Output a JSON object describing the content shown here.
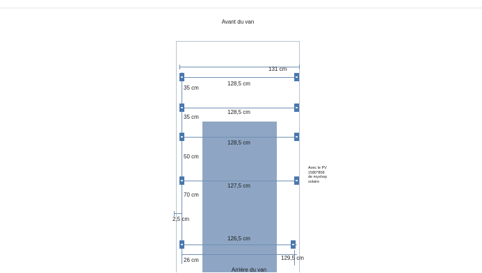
{
  "diagram": {
    "front_label": "Avant du van",
    "rear_label": "Arrière du van",
    "overall_width": "131 cm",
    "rows": [
      {
        "width": "128,5 cm",
        "gap": "35 cm"
      },
      {
        "width": "128,5 cm",
        "gap": "35 cm"
      },
      {
        "width": "128,5 cm",
        "gap": "50 cm"
      },
      {
        "width": "127,5 cm",
        "gap": "70 cm"
      },
      {
        "width": "126,5 cm",
        "gap": "26 cm"
      }
    ],
    "left_offset": "2,5 cm",
    "bottom_right_width": "129,5 cm",
    "pv_note": [
      "Avec le PV",
      "1580*808",
      "de myshop",
      "solaire"
    ],
    "colors": {
      "panel": "#8ea6c4",
      "clip": "#4a78ae",
      "measure_line": "#6f8fb3",
      "frame": "#b7c2cf"
    }
  }
}
